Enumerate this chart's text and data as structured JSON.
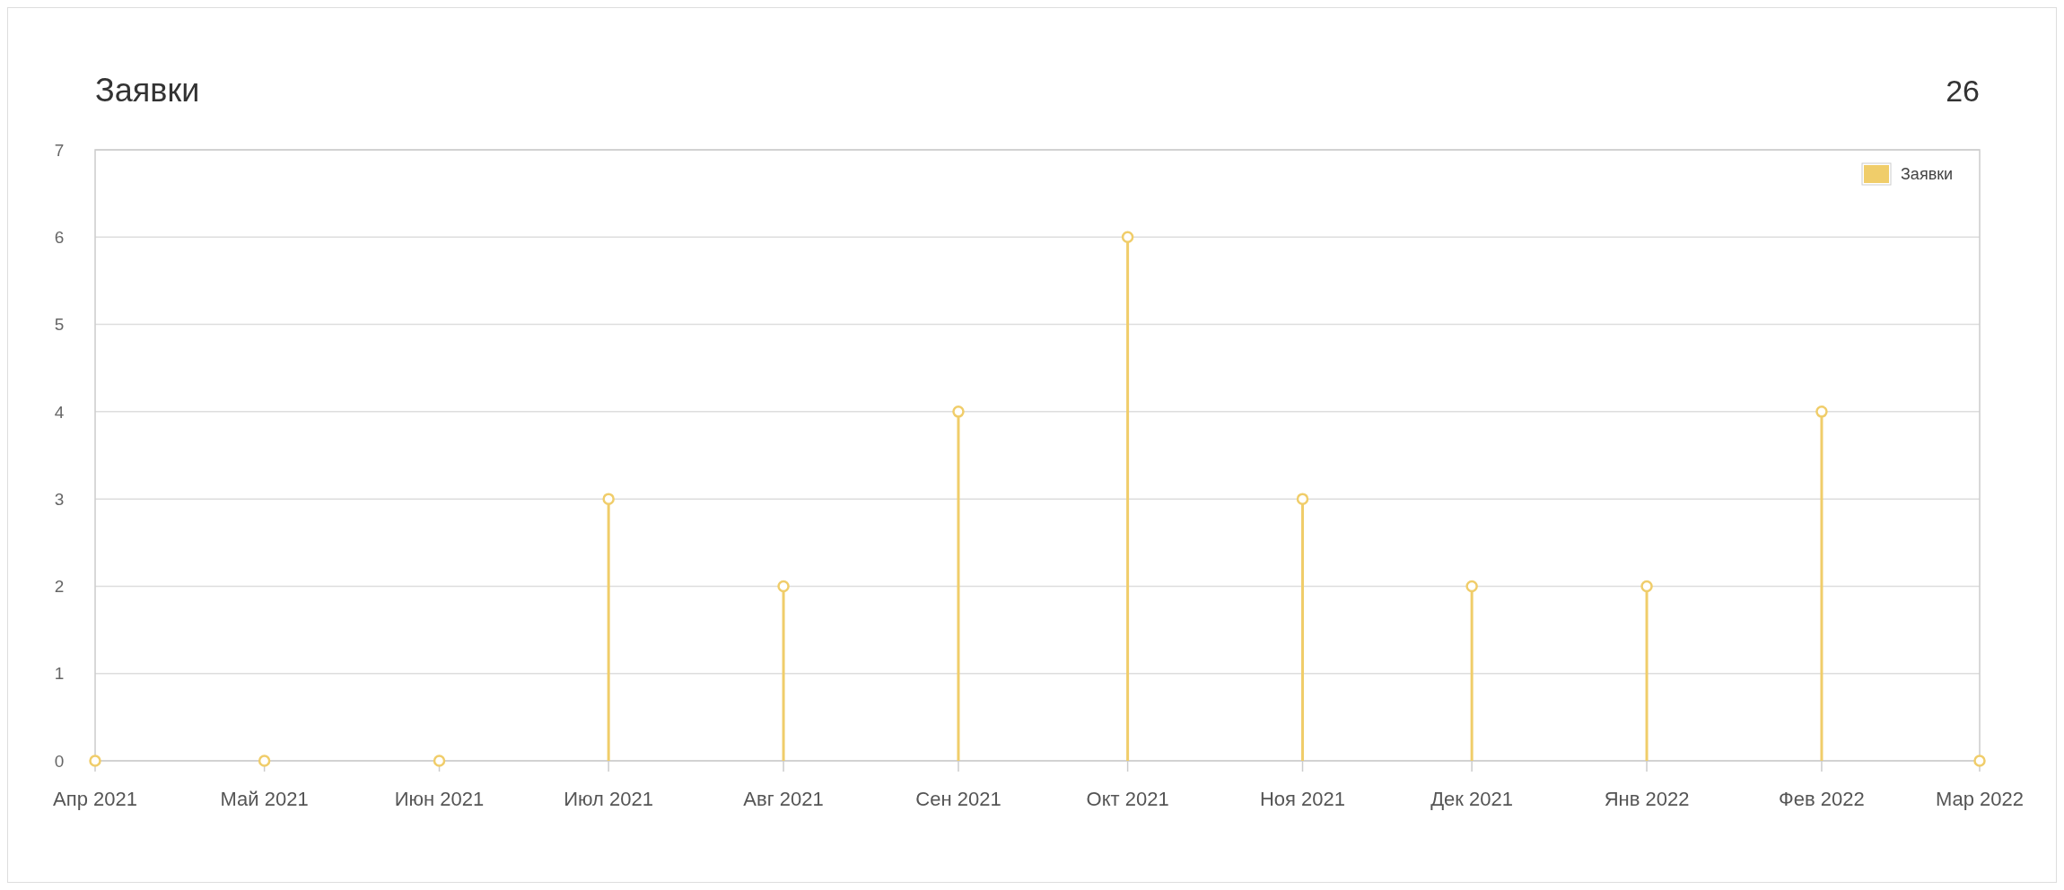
{
  "chart_data": {
    "type": "lollipop",
    "title": "Заявки",
    "annotations": [
      "26"
    ],
    "x": [
      "2021-04",
      "2021-05",
      "2021-06",
      "2021-07",
      "2021-08",
      "2021-09",
      "2021-10",
      "2021-11",
      "2021-12",
      "2022-01",
      "2022-02",
      "2022-03"
    ],
    "series": [
      {
        "name": "Заявки",
        "color": "#f0cd6a",
        "values": [
          0,
          0,
          0,
          3,
          2,
          4,
          6,
          3,
          2,
          2,
          4,
          0
        ]
      }
    ],
    "xlim": [
      "2021-04",
      "2022-03"
    ],
    "xticks": [
      {
        "value": "2021-04",
        "label": "Апр 2021"
      },
      {
        "value": "2021-05",
        "label": "Май 2021"
      },
      {
        "value": "2021-06",
        "label": "Июн 2021"
      },
      {
        "value": "2021-07",
        "label": "Июл 2021"
      },
      {
        "value": "2021-08",
        "label": "Авг 2021"
      },
      {
        "value": "2021-09",
        "label": "Сен 2021"
      },
      {
        "value": "2021-10",
        "label": "Окт 2021"
      },
      {
        "value": "2021-11",
        "label": "Ноя 2021"
      },
      {
        "value": "2021-12",
        "label": "Дек 2021"
      },
      {
        "value": "2022-01",
        "label": "Янв 2022"
      },
      {
        "value": "2022-02",
        "label": "Фев 2022"
      },
      {
        "value": "2022-03",
        "label": "Мар 2022"
      }
    ],
    "ylim": [
      0,
      7
    ],
    "yticks": [
      0,
      1,
      2,
      3,
      4,
      5,
      6,
      7
    ],
    "grid": "y",
    "legend": "top right",
    "marker": "circle"
  }
}
